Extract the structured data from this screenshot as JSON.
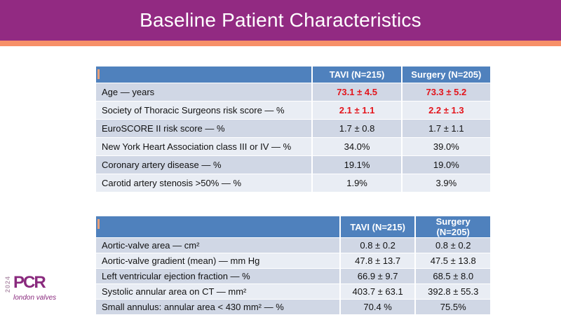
{
  "title": "Baseline Patient Characteristics",
  "table1": {
    "headers": [
      "",
      "TAVI (N=215)",
      "Surgery (N=205)"
    ],
    "rows": [
      {
        "label": "Age — years",
        "tavi": "73.1 ± 4.5",
        "surgery": "73.3 ± 5.2",
        "highlight": true
      },
      {
        "label": "Society of Thoracic Surgeons risk score — %",
        "tavi": "2.1 ± 1.1",
        "surgery": "2.2 ± 1.3",
        "highlight": true
      },
      {
        "label": "EuroSCORE II risk score — %",
        "tavi": "1.7 ± 0.8",
        "surgery": "1.7 ± 1.1"
      },
      {
        "label": "New York Heart Association class III or IV — %",
        "tavi": "34.0%",
        "surgery": "39.0%"
      },
      {
        "label": "Coronary artery disease — %",
        "tavi": "19.1%",
        "surgery": "19.0%"
      },
      {
        "label": "Carotid artery stenosis >50% — %",
        "tavi": "1.9%",
        "surgery": "3.9%"
      }
    ]
  },
  "table2": {
    "headers": [
      "",
      "TAVI (N=215)",
      "Surgery (N=205)"
    ],
    "rows": [
      {
        "label": "Aortic-valve area — cm²",
        "tavi": "0.8 ± 0.2",
        "surgery": "0.8 ± 0.2"
      },
      {
        "label": "Aortic-valve gradient (mean) — mm Hg",
        "tavi": "47.8 ± 13.7",
        "surgery": "47.5 ± 13.8"
      },
      {
        "label": "Left ventricular ejection fraction — %",
        "tavi": "66.9 ± 9.7",
        "surgery": "68.5 ± 8.0"
      },
      {
        "label": "Systolic annular area on CT — mm²",
        "tavi": "403.7 ± 63.1",
        "surgery": "392.8 ± 55.3"
      },
      {
        "label": "Small annulus: annular area < 430 mm² — %",
        "tavi": "70.4 %",
        "surgery": "75.5%"
      }
    ]
  },
  "logo": {
    "year": "2024",
    "brand": "PCR",
    "subtitle": "london valves"
  },
  "colors": {
    "title_bar": "#922a82",
    "stripe": "#f79068",
    "header": "#4f81bd",
    "highlight": "#e3141b"
  }
}
